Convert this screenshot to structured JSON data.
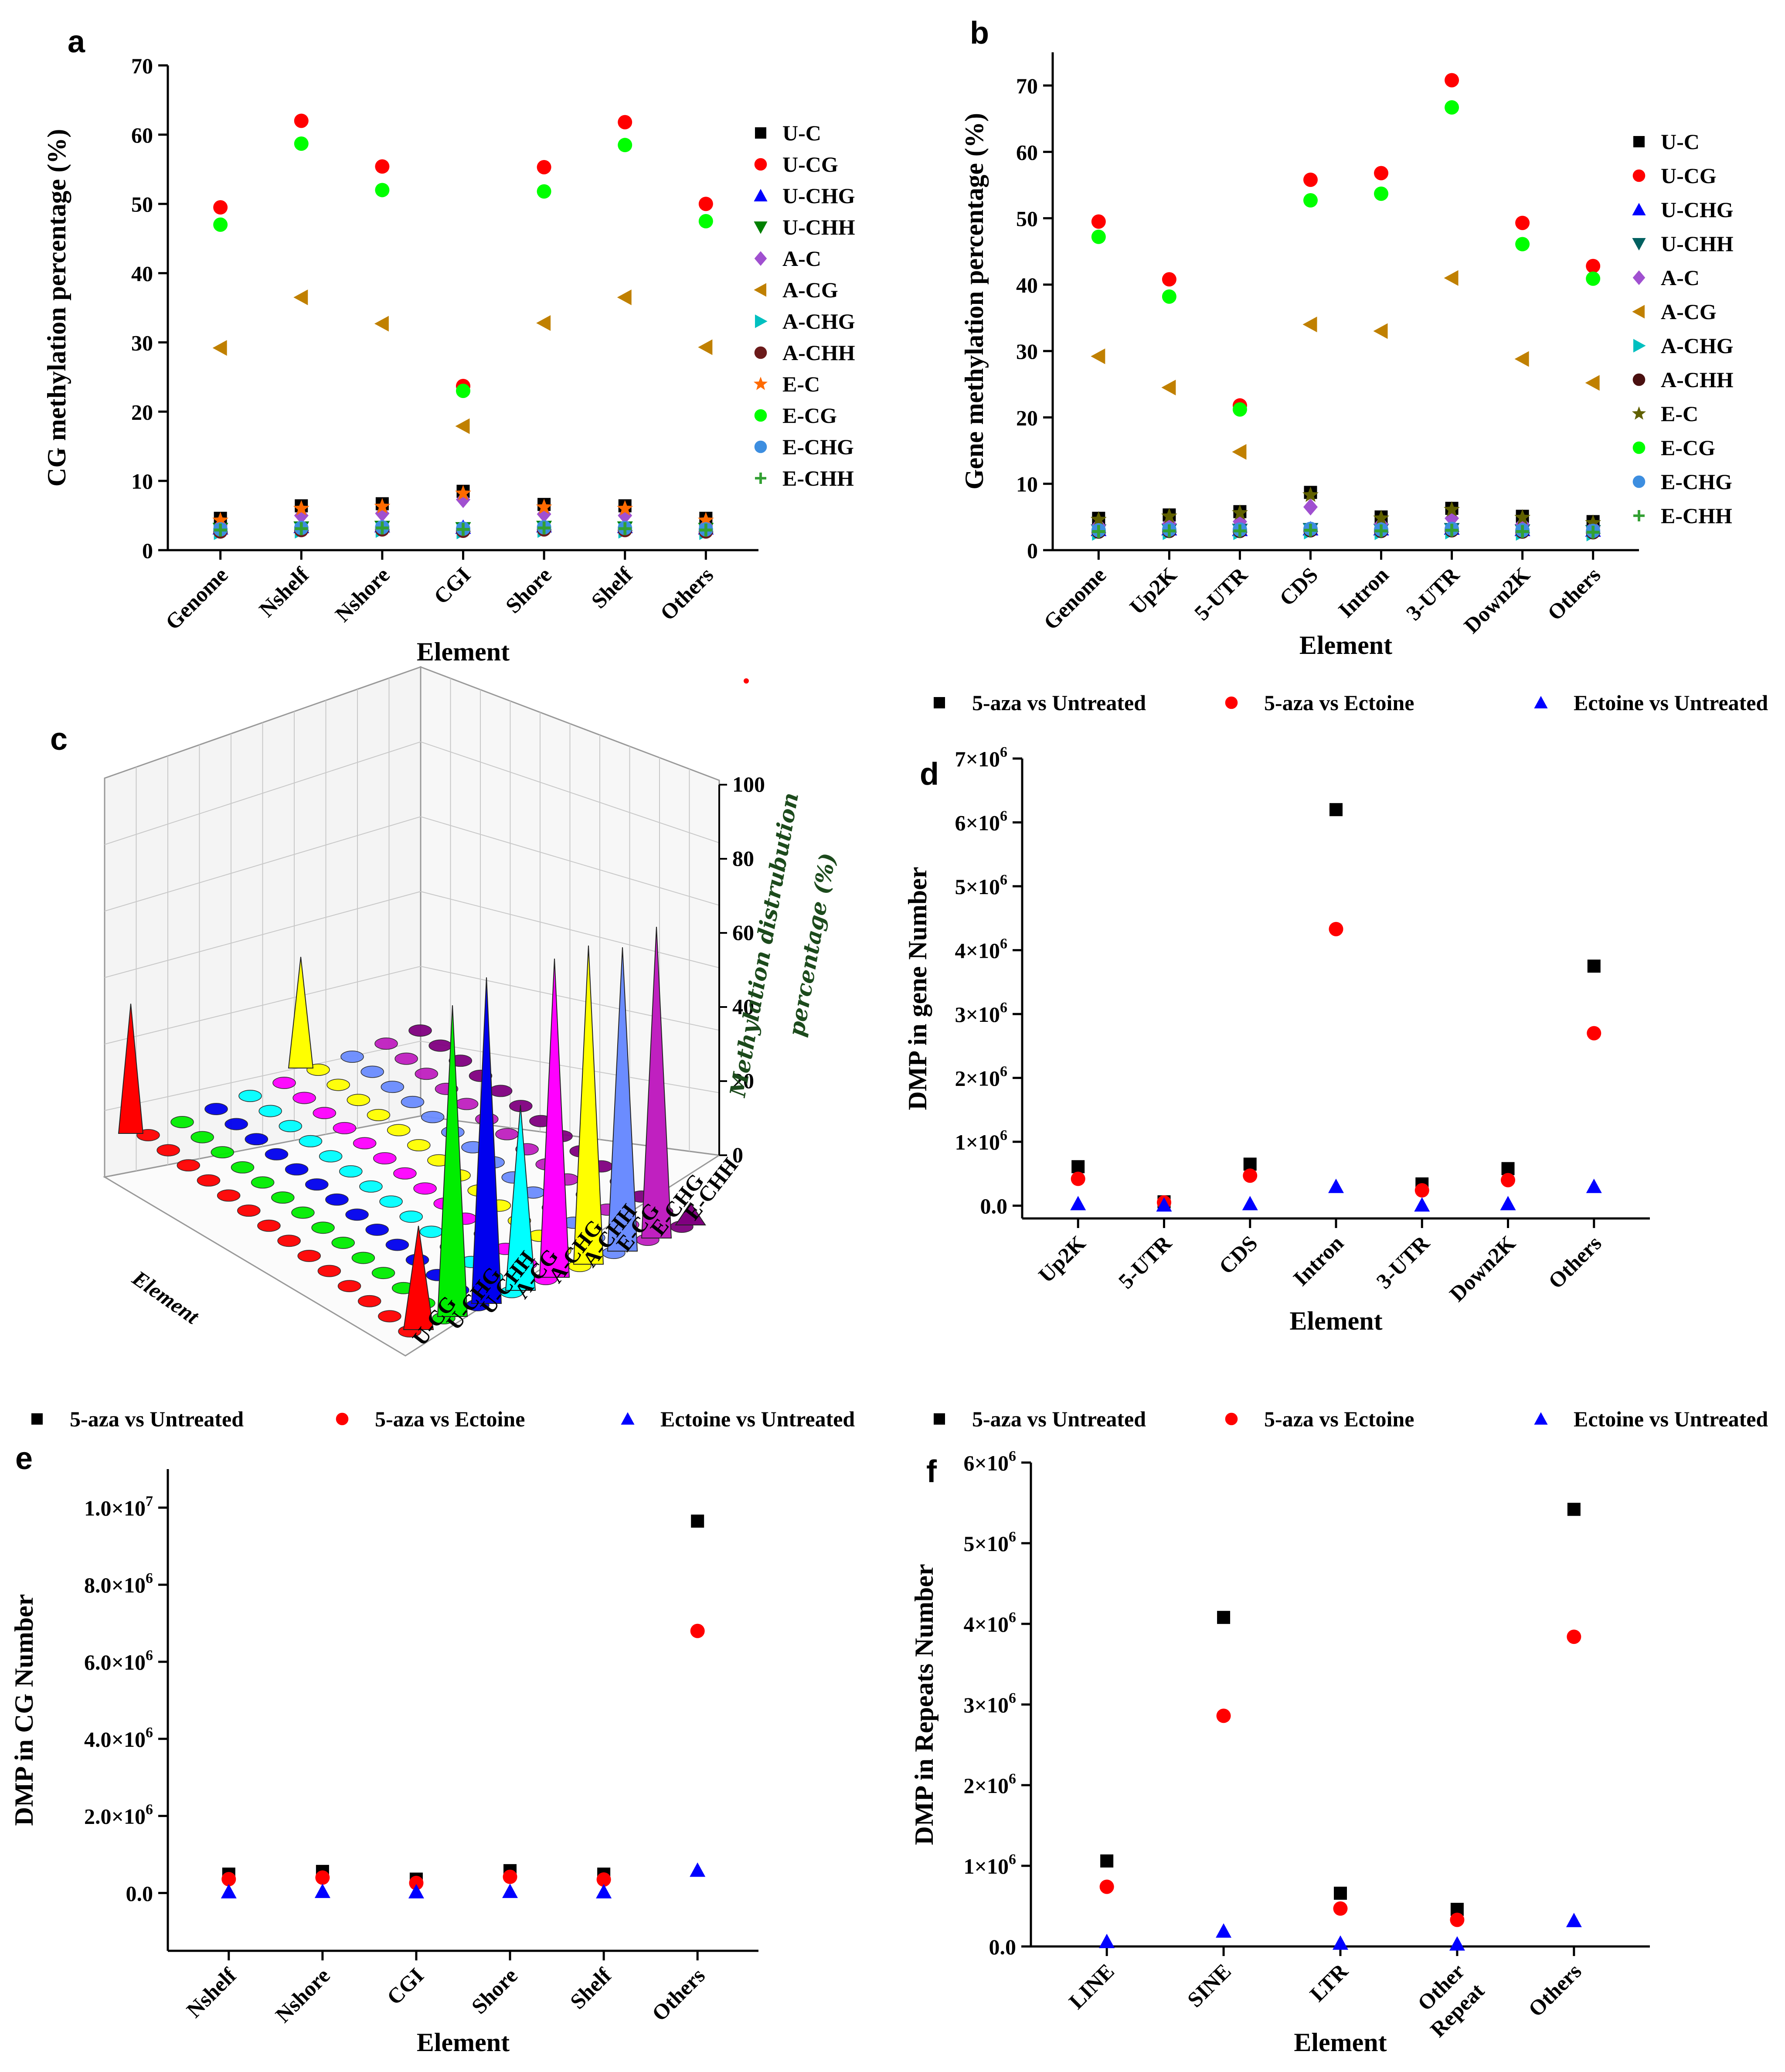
{
  "chart_data": [
    {
      "panel": "a",
      "type": "scatter",
      "xlabel": "Element",
      "ylabel": "CG methylation percentage (%)",
      "ylim": [
        0,
        70
      ],
      "yticks": [
        0,
        10,
        20,
        30,
        40,
        50,
        60,
        70
      ],
      "categories": [
        "Genome",
        "Nshelf",
        "Nshore",
        "CGI",
        "Shore",
        "Shelf",
        "Others"
      ],
      "legend_position": "right",
      "series": [
        {
          "name": "U-C",
          "marker": "square",
          "color": "#000000",
          "values": [
            4.6,
            6.4,
            6.7,
            8.5,
            6.6,
            6.4,
            4.6
          ]
        },
        {
          "name": "U-CG",
          "marker": "circle",
          "color": "#ff0000",
          "values": [
            49.5,
            62.0,
            55.4,
            23.7,
            55.3,
            61.8,
            50.0
          ]
        },
        {
          "name": "U-CHG",
          "marker": "triangle-up",
          "color": "#0000ff",
          "values": [
            3.2,
            3.4,
            3.5,
            3.3,
            3.5,
            3.4,
            3.2
          ]
        },
        {
          "name": "U-CHH",
          "marker": "triangle-down",
          "color": "#008000",
          "values": [
            3.0,
            3.2,
            3.3,
            3.1,
            3.3,
            3.2,
            3.0
          ]
        },
        {
          "name": "A-C",
          "marker": "diamond",
          "color": "#a050d0",
          "values": [
            3.5,
            5.0,
            5.3,
            7.3,
            5.2,
            5.0,
            3.5
          ]
        },
        {
          "name": "A-CG",
          "marker": "triangle-left",
          "color": "#c08000",
          "values": [
            29.2,
            36.5,
            32.7,
            17.9,
            32.8,
            36.5,
            29.3
          ]
        },
        {
          "name": "A-CHG",
          "marker": "triangle-right",
          "color": "#00c0c0",
          "values": [
            2.6,
            2.8,
            2.9,
            2.7,
            2.9,
            2.8,
            2.6
          ]
        },
        {
          "name": "A-CHH",
          "marker": "circle",
          "color": "#6b1a1a",
          "values": [
            2.7,
            2.9,
            3.0,
            2.8,
            3.0,
            2.9,
            2.7
          ]
        },
        {
          "name": "E-C",
          "marker": "star",
          "color": "#ff6a00",
          "values": [
            4.3,
            6.0,
            6.3,
            8.2,
            6.2,
            6.0,
            4.3
          ]
        },
        {
          "name": "E-CG",
          "marker": "circle",
          "color": "#00ff00",
          "values": [
            47.0,
            58.7,
            52.0,
            23.0,
            51.8,
            58.5,
            47.5
          ]
        },
        {
          "name": "E-CHG",
          "marker": "circle",
          "color": "#3d8ee0",
          "values": [
            3.0,
            3.2,
            3.3,
            3.1,
            3.3,
            3.2,
            3.0
          ]
        },
        {
          "name": "E-CHH",
          "marker": "plus",
          "color": "#33a033",
          "values": [
            2.9,
            3.1,
            3.2,
            3.0,
            3.2,
            3.1,
            2.9
          ]
        }
      ]
    },
    {
      "panel": "b",
      "type": "scatter",
      "xlabel": "Element",
      "ylabel": "Gene methylation percentage (%)",
      "ylim": [
        0,
        75
      ],
      "yticks": [
        0,
        10,
        20,
        30,
        40,
        50,
        60,
        70
      ],
      "categories": [
        "Genome",
        "Up2K",
        "5-UTR",
        "CDS",
        "Intron",
        "3-UTR",
        "Down2K",
        "Others"
      ],
      "legend_position": "right",
      "series": [
        {
          "name": "U-C",
          "marker": "square",
          "color": "#000000",
          "values": [
            4.8,
            5.3,
            5.8,
            8.7,
            5.0,
            6.3,
            5.1,
            4.3
          ]
        },
        {
          "name": "U-CG",
          "marker": "circle",
          "color": "#ff0000",
          "values": [
            49.5,
            40.8,
            21.8,
            55.8,
            56.8,
            70.8,
            49.3,
            42.8
          ]
        },
        {
          "name": "U-CHG",
          "marker": "triangle-up",
          "color": "#0000ff",
          "values": [
            3.1,
            3.2,
            3.1,
            3.2,
            3.2,
            3.3,
            3.1,
            3.0
          ]
        },
        {
          "name": "U-CHH",
          "marker": "triangle-down",
          "color": "#006060",
          "values": [
            2.9,
            3.0,
            3.0,
            3.1,
            3.0,
            3.1,
            2.9,
            2.8
          ]
        },
        {
          "name": "A-C",
          "marker": "diamond",
          "color": "#a050d0",
          "values": [
            3.7,
            4.0,
            4.3,
            6.5,
            3.9,
            4.8,
            3.9,
            3.4
          ]
        },
        {
          "name": "A-CG",
          "marker": "triangle-left",
          "color": "#c08000",
          "values": [
            29.2,
            24.5,
            14.8,
            34.0,
            33.0,
            41.0,
            28.8,
            25.2
          ]
        },
        {
          "name": "A-CHG",
          "marker": "triangle-right",
          "color": "#00c0c0",
          "values": [
            2.6,
            2.7,
            2.7,
            2.8,
            2.7,
            2.8,
            2.6,
            2.5
          ]
        },
        {
          "name": "A-CHH",
          "marker": "circle",
          "color": "#4a1010",
          "values": [
            2.8,
            2.9,
            2.9,
            3.0,
            2.9,
            3.0,
            2.8,
            2.7
          ]
        },
        {
          "name": "E-C",
          "marker": "star",
          "color": "#606000",
          "values": [
            4.6,
            5.1,
            5.6,
            8.3,
            4.8,
            6.1,
            4.9,
            4.1
          ]
        },
        {
          "name": "E-CG",
          "marker": "circle",
          "color": "#00ff00",
          "values": [
            47.2,
            38.2,
            21.2,
            52.7,
            53.7,
            66.7,
            46.1,
            40.9
          ]
        },
        {
          "name": "E-CHG",
          "marker": "circle",
          "color": "#3d8ee0",
          "values": [
            3.0,
            3.1,
            3.1,
            3.2,
            3.1,
            3.2,
            3.0,
            2.9
          ]
        },
        {
          "name": "E-CHH",
          "marker": "plus",
          "color": "#33a033",
          "values": [
            2.8,
            2.9,
            2.9,
            3.0,
            2.9,
            3.0,
            2.8,
            2.7
          ]
        }
      ]
    },
    {
      "panel": "c",
      "type": "3d-waterfall",
      "xlabel": "Element",
      "zlabel": "Methylation distrubution percentage (%)",
      "zlim": [
        0,
        100
      ],
      "zticks": [
        0,
        20,
        40,
        60,
        80,
        100
      ],
      "series_axis_labels": [
        "U-CG",
        "U-CHG",
        "U-CHH",
        "A-CG",
        "A-CHG",
        "A-CHH",
        "E-CG",
        "E-CHG",
        "E-CHH"
      ],
      "series": [
        {
          "name": "U-CG",
          "color": "#ff0000",
          "peak_low": 35,
          "peak_high": 28
        },
        {
          "name": "U-CHG",
          "color": "#00ee00",
          "peak_low": 6,
          "peak_high": 84
        },
        {
          "name": "U-CHH",
          "color": "#0000ee",
          "peak_low": 6,
          "peak_high": 88
        },
        {
          "name": "A-CG",
          "color": "#00ffff",
          "peak_low": 6,
          "peak_high": 50
        },
        {
          "name": "A-CHG",
          "color": "#ff00ff",
          "peak_low": 6,
          "peak_high": 86
        },
        {
          "name": "A-CHH",
          "color": "#ffff00",
          "peak_low": 30,
          "peak_high": 86
        },
        {
          "name": "E-CG",
          "color": "#6b8cff",
          "peak_low": 6,
          "peak_high": 82
        },
        {
          "name": "E-CHG",
          "color": "#c020c0",
          "peak_low": 6,
          "peak_high": 84
        },
        {
          "name": "E-CHH",
          "color": "#800080",
          "peak_low": 6,
          "peak_high": 6
        }
      ]
    },
    {
      "panel": "d",
      "type": "scatter",
      "xlabel": "Element",
      "ylabel": "DMP in gene Number",
      "ylim": [
        -200000,
        7000000
      ],
      "yticks": [
        0,
        1000000,
        2000000,
        3000000,
        4000000,
        5000000,
        6000000,
        7000000
      ],
      "ytick_labels": [
        [
          "0.0",
          ""
        ],
        [
          "1×10",
          "6"
        ],
        [
          "2×10",
          "6"
        ],
        [
          "3×10",
          "6"
        ],
        [
          "4×10",
          "6"
        ],
        [
          "5×10",
          "6"
        ],
        [
          "6×10",
          "6"
        ],
        [
          "7×10",
          "6"
        ]
      ],
      "categories": [
        "Up2K",
        "5-UTR",
        "CDS",
        "Intron",
        "3-UTR",
        "Down2K",
        "Others"
      ],
      "legend_position": "top",
      "series": [
        {
          "name": "5-aza vs Untreated",
          "marker": "square",
          "color": "#000000",
          "values": [
            610000,
            60000,
            650000,
            6200000,
            340000,
            580000,
            3750000
          ]
        },
        {
          "name": "5-aza vs Ectoine",
          "marker": "circle",
          "color": "#ff0000",
          "values": [
            420000,
            50000,
            470000,
            4330000,
            240000,
            400000,
            2700000
          ]
        },
        {
          "name": "Ectoine vs Untreated",
          "marker": "triangle-up",
          "color": "#0000ff",
          "values": [
            30000,
            10000,
            30000,
            300000,
            10000,
            30000,
            300000
          ]
        }
      ]
    },
    {
      "panel": "e",
      "type": "scatter",
      "xlabel": "Element",
      "ylabel": "DMP in CG Number",
      "ylim": [
        -1500000,
        11000000
      ],
      "yticks": [
        0,
        2000000,
        4000000,
        6000000,
        8000000,
        10000000
      ],
      "ytick_labels": [
        [
          "0.0",
          ""
        ],
        [
          "2.0×10",
          "6"
        ],
        [
          "4.0×10",
          "6"
        ],
        [
          "6.0×10",
          "6"
        ],
        [
          "8.0×10",
          "6"
        ],
        [
          "1.0×10",
          "7"
        ]
      ],
      "categories": [
        "Nshelf",
        "Nshore",
        "CGI",
        "Shore",
        "Shelf",
        "Others"
      ],
      "legend_position": "top",
      "series": [
        {
          "name": "5-aza vs Untreated",
          "marker": "square",
          "color": "#000000",
          "values": [
            490000,
            560000,
            360000,
            580000,
            490000,
            9650000
          ]
        },
        {
          "name": "5-aza vs Ectoine",
          "marker": "circle",
          "color": "#ff0000",
          "values": [
            360000,
            400000,
            260000,
            420000,
            350000,
            6800000
          ]
        },
        {
          "name": "Ectoine vs Untreated",
          "marker": "triangle-up",
          "color": "#0000ff",
          "values": [
            30000,
            40000,
            30000,
            40000,
            30000,
            590000
          ]
        }
      ]
    },
    {
      "panel": "f",
      "type": "scatter",
      "xlabel": "Element",
      "ylabel": "DMP in Repeats Number",
      "ylim": [
        0,
        6000000
      ],
      "yticks": [
        0,
        1000000,
        2000000,
        3000000,
        4000000,
        5000000,
        6000000
      ],
      "ytick_labels": [
        [
          "0.0",
          ""
        ],
        [
          "1×10",
          "6"
        ],
        [
          "2×10",
          "6"
        ],
        [
          "3×10",
          "6"
        ],
        [
          "4×10",
          "6"
        ],
        [
          "5×10",
          "6"
        ],
        [
          "6×10",
          "6"
        ]
      ],
      "categories": [
        "LINE",
        "SINE",
        "LTR",
        "Other Repeat",
        "Others"
      ],
      "legend_position": "top",
      "series": [
        {
          "name": "5-aza vs Untreated",
          "marker": "square",
          "color": "#000000",
          "values": [
            1060000,
            4080000,
            660000,
            460000,
            5420000
          ]
        },
        {
          "name": "5-aza vs Ectoine",
          "marker": "circle",
          "color": "#ff0000",
          "values": [
            740000,
            2860000,
            470000,
            330000,
            3840000
          ]
        },
        {
          "name": "Ectoine vs Untreated",
          "marker": "triangle-up",
          "color": "#0000ff",
          "values": [
            60000,
            190000,
            40000,
            30000,
            320000
          ]
        }
      ]
    }
  ]
}
